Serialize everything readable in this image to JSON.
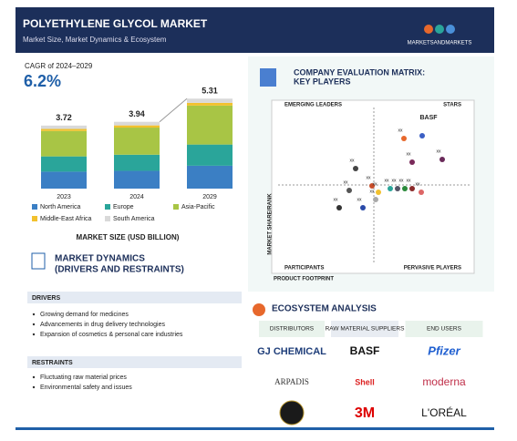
{
  "header": {
    "title": "POLYETHYLENE GLYCOL MARKET",
    "subtitle": "Market Size, Market Dynamics & Ecosystem",
    "logo": "MARKETSANDMARKETS"
  },
  "cagr": {
    "label": "CAGR of 2024–2029",
    "value": "6.2%"
  },
  "chart_data": {
    "type": "bar",
    "stacked": true,
    "title": "MARKET SIZE (USD BILLION)",
    "categories": [
      "2023",
      "2024",
      "2029"
    ],
    "series": [
      {
        "name": "North America",
        "color": "#3b7fc4",
        "values": [
          1.0,
          1.05,
          1.35
        ]
      },
      {
        "name": "Europe",
        "color": "#2aa59a",
        "values": [
          0.9,
          0.95,
          1.25
        ]
      },
      {
        "name": "Asia-Pacific",
        "color": "#a8c545",
        "values": [
          1.5,
          1.6,
          2.3
        ]
      },
      {
        "name": "Middle-East Africa",
        "color": "#f2c12e",
        "values": [
          0.12,
          0.13,
          0.16
        ]
      },
      {
        "name": "South America",
        "color": "#d9d9d9",
        "values": [
          0.2,
          0.21,
          0.25
        ]
      }
    ],
    "totals": [
      3.72,
      3.94,
      5.31
    ]
  },
  "dynamics": {
    "title": "MARKET DYNAMICS",
    "subtitle": "(DRIVERS AND RESTRAINTS)",
    "drivers": {
      "title": "DRIVERS",
      "items": [
        "Growing demand for medicines",
        "Advancements in drug delivery technologies",
        "Expansion of cosmetics & personal care industries"
      ]
    },
    "restraints": {
      "title": "RESTRAINTS",
      "items": [
        "Fluctuating raw material prices",
        "Environmental safety and issues"
      ]
    }
  },
  "matrix": {
    "title": "COMPANY EVALUATION MATRIX:",
    "subtitle": "KEY PLAYERS",
    "y_label": "MARKET SHARE/RANK",
    "x_label": "PRODUCT FOOTPRINT",
    "quadrants": [
      "EMERGING LEADERS",
      "STARS",
      "PARTICIPANTS",
      "PERVASIVE PLAYERS"
    ],
    "players": [
      "BASF",
      "xx",
      "xx",
      "xx",
      "xx",
      "xx",
      "xx",
      "xx",
      "xx",
      "xx",
      "xx",
      "xx",
      "xx",
      "xx",
      "xx",
      "xx"
    ]
  },
  "ecosystem": {
    "title": "ECOSYSTEM ANALYSIS",
    "columns": [
      "DISTRIBUTORS",
      "RAW MATERIAL SUPPLIERS",
      "END USERS"
    ],
    "logos": [
      [
        "GJ CHEMICAL",
        "BASF",
        "Pfizer"
      ],
      [
        "ARPADIS",
        "Shell",
        "moderna"
      ],
      [
        "",
        "3M",
        "L'ORÉAL"
      ]
    ]
  }
}
